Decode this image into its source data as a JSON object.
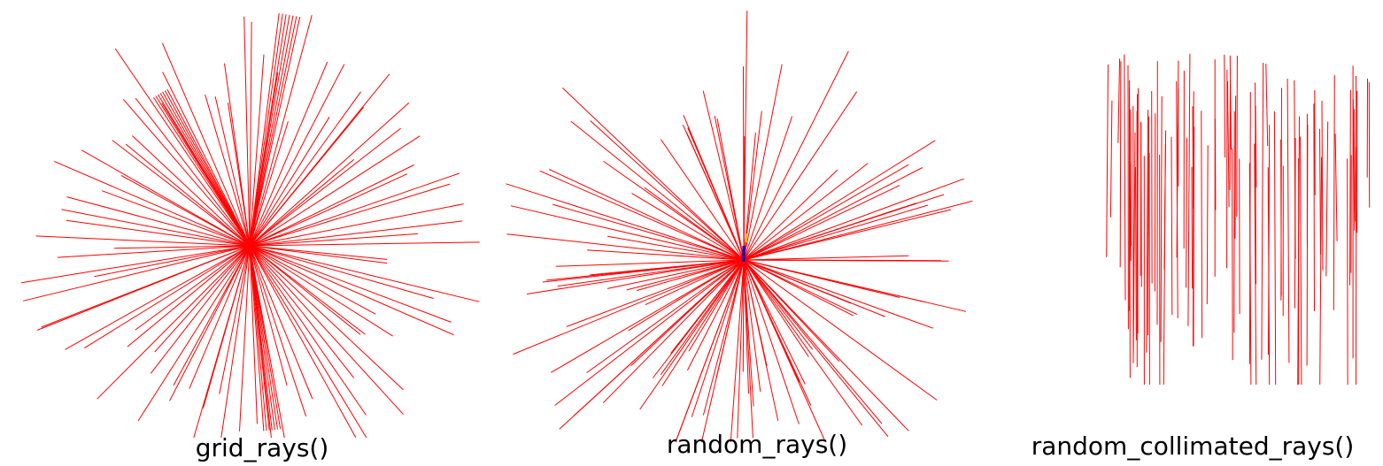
{
  "colors": {
    "ray": "#ff0000",
    "marker_blue": "#0000cc",
    "marker_yellow": "#e0c000",
    "background": "#ffffff"
  },
  "panels": [
    {
      "id": "grid",
      "caption": "grid_rays()"
    },
    {
      "id": "random",
      "caption": "random_rays()"
    },
    {
      "id": "collimated",
      "caption": "random_collimated_rays()"
    }
  ]
}
